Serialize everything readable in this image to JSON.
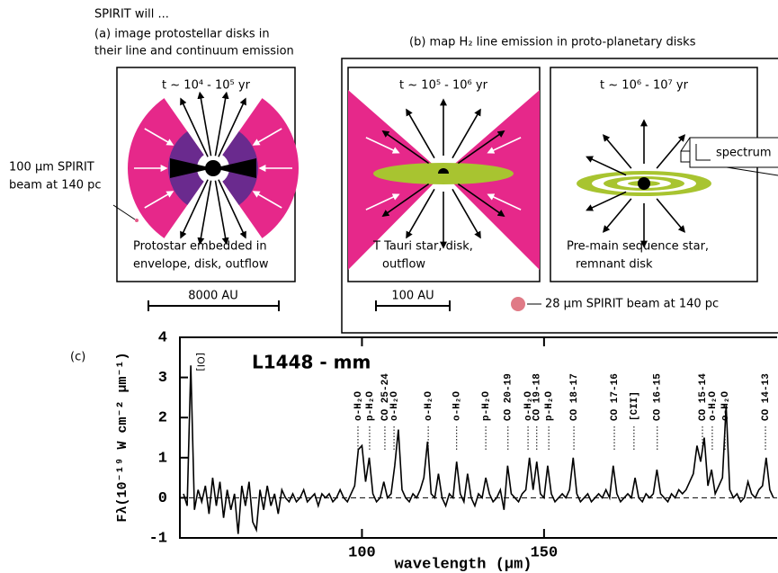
{
  "header": {
    "lines": [
      "SPIRIT will ...",
      "(a) image protostellar disks in",
      "their line and continuum emission"
    ]
  },
  "panel_b_title": "(b) map H₂ line emission in proto-planetary disks",
  "boxes": [
    {
      "time": "t ~ 10⁴ - 10⁵ yr",
      "caption": [
        "Protostar embedded in",
        "envelope, disk, outflow"
      ]
    },
    {
      "time": "t ~ 10⁵ - 10⁶ yr",
      "caption": [
        "T Tauri star, disk,",
        "outflow"
      ]
    },
    {
      "time": "t ~ 10⁶ - 10⁷ yr",
      "caption": [
        "Pre-main sequence star,",
        "remnant disk"
      ]
    }
  ],
  "beam_100": [
    "100 µm SPIRIT",
    "beam at 140 pc"
  ],
  "beam_28": "28 µm SPIRIT beam at 140 pc",
  "scale_a": "8000 AU",
  "scale_b": "100 AU",
  "inset": "spectrum",
  "chart_data": {
    "type": "line",
    "panel_label": "(c)",
    "title": "L1448 - mm",
    "y_label": "Fλ(10⁻¹⁹ W cm⁻² µm⁻¹)",
    "x_label": "wavelength (µm)",
    "color": "#000000",
    "xlim": [
      50,
      214
    ],
    "ylim": [
      -1,
      4
    ],
    "xticks": [
      100,
      150
    ],
    "yticks": [
      -1,
      0,
      1,
      2,
      3,
      4
    ],
    "x": [
      51,
      52,
      53,
      54,
      55,
      56,
      57,
      58,
      59,
      60,
      61,
      62,
      63,
      64,
      65,
      66,
      67,
      68,
      69,
      70,
      71,
      72,
      73,
      74,
      75,
      76,
      77,
      78,
      79,
      80,
      81,
      82,
      83,
      84,
      85,
      86,
      87,
      88,
      89,
      90,
      91,
      92,
      93,
      94,
      95,
      96,
      97,
      98,
      99,
      100,
      101,
      102,
      103,
      104,
      105,
      106,
      107,
      108,
      109,
      110,
      111,
      112,
      113,
      114,
      115,
      116,
      117,
      118,
      119,
      120,
      121,
      122,
      123,
      124,
      125,
      126,
      127,
      128,
      129,
      130,
      131,
      132,
      133,
      134,
      135,
      136,
      137,
      138,
      139,
      140,
      141,
      142,
      143,
      144,
      145,
      146,
      147,
      148,
      149,
      150,
      151,
      152,
      153,
      154,
      155,
      156,
      157,
      158,
      159,
      160,
      161,
      162,
      163,
      164,
      165,
      166,
      167,
      168,
      169,
      170,
      171,
      172,
      173,
      174,
      175,
      176,
      177,
      178,
      179,
      180,
      181,
      182,
      183,
      184,
      185,
      186,
      187,
      188,
      189,
      190,
      191,
      192,
      193,
      194,
      195,
      196,
      197,
      198,
      199,
      200,
      201,
      202,
      203,
      204,
      205,
      206,
      207,
      208,
      209,
      210,
      211,
      212,
      213
    ],
    "values": [
      0.1,
      -0.2,
      3.3,
      -0.3,
      0.2,
      -0.1,
      0.3,
      -0.4,
      0.5,
      -0.2,
      0.4,
      -0.5,
      0.2,
      -0.3,
      0.1,
      -0.9,
      0.3,
      -0.2,
      0.4,
      -0.6,
      -0.8,
      0.2,
      -0.3,
      0.3,
      -0.2,
      0.1,
      -0.4,
      0.2,
      0,
      -0.1,
      0.1,
      -0.1,
      0,
      0.2,
      -0.1,
      0,
      0.1,
      -0.2,
      0.1,
      0,
      0.1,
      -0.1,
      0,
      0.2,
      0,
      -0.1,
      0.1,
      0.3,
      1.2,
      1.3,
      0.4,
      1.0,
      0.1,
      -0.1,
      0,
      0.4,
      0,
      0.1,
      0.8,
      1.7,
      0.2,
      0,
      -0.1,
      0.1,
      0,
      0.2,
      0.5,
      1.4,
      0.1,
      0,
      0.6,
      0,
      -0.2,
      0.1,
      0,
      0.9,
      0.1,
      -0.1,
      0.6,
      0,
      -0.2,
      0.1,
      0,
      0.5,
      0.1,
      -0.1,
      0,
      0.2,
      -0.3,
      0.8,
      0.1,
      0,
      -0.1,
      0.1,
      0.2,
      1.0,
      0.2,
      0.9,
      0.1,
      0,
      0.8,
      0.1,
      -0.1,
      0,
      0.1,
      0,
      0.2,
      1.0,
      0.1,
      -0.1,
      0,
      0.1,
      -0.1,
      0,
      0.1,
      0,
      0.2,
      0,
      0.8,
      0.1,
      -0.1,
      0,
      0.1,
      0,
      0.5,
      0,
      -0.1,
      0.1,
      0,
      0.1,
      0.7,
      0.1,
      0,
      -0.1,
      0.1,
      0,
      0.2,
      0.1,
      0.2,
      0.4,
      0.6,
      1.3,
      0.9,
      1.5,
      0.3,
      0.7,
      0.1,
      0.3,
      0.5,
      2.3,
      0.2,
      0,
      0.1,
      -0.1,
      0,
      0.4,
      0.1,
      0,
      0.2,
      0.3,
      1.0,
      0.2,
      0
    ],
    "annotation": {
      "text": "[OI]",
      "x": 55.5
    },
    "line_labels": [
      {
        "text": "o-H₂O",
        "x": 98.9,
        "color": "#e00000"
      },
      {
        "text": "p-H₂O",
        "x": 102.1,
        "color": "#e00000"
      },
      {
        "text": "CO 25-24",
        "x": 106.3,
        "color": "#000000"
      },
      {
        "text": "o-H₂O",
        "x": 108.8,
        "color": "#e00000"
      },
      {
        "text": "o-H₂O",
        "x": 118.2,
        "color": "#e00000"
      },
      {
        "text": "o-H₂O",
        "x": 126,
        "color": "#e00000"
      },
      {
        "text": "p-H₂O",
        "x": 134,
        "color": "#e00000"
      },
      {
        "text": "CO 20-19",
        "x": 140.1,
        "color": "#000000"
      },
      {
        "text": "o-H₂O",
        "x": 145.6,
        "color": "#e00000"
      },
      {
        "text": "CO 19-18",
        "x": 148,
        "color": "#000000"
      },
      {
        "text": "p-H₂O",
        "x": 151.3,
        "color": "#e00000"
      },
      {
        "text": "CO 18-17",
        "x": 158.2,
        "color": "#000000"
      },
      {
        "text": "CO 17-16",
        "x": 169.3,
        "color": "#000000"
      },
      {
        "text": "[CII]",
        "x": 174.7,
        "color": "#000000"
      },
      {
        "text": "CO 16-15",
        "x": 181.1,
        "color": "#000000"
      },
      {
        "text": "CO 15-14",
        "x": 193.5,
        "color": "#000000"
      },
      {
        "text": "o-H₂O",
        "x": 196.2,
        "color": "#e00000"
      },
      {
        "text": "o-H₂O",
        "x": 199.7,
        "color": "#e00000"
      },
      {
        "text": "CO 14-13",
        "x": 210.8,
        "color": "#000000"
      }
    ]
  }
}
